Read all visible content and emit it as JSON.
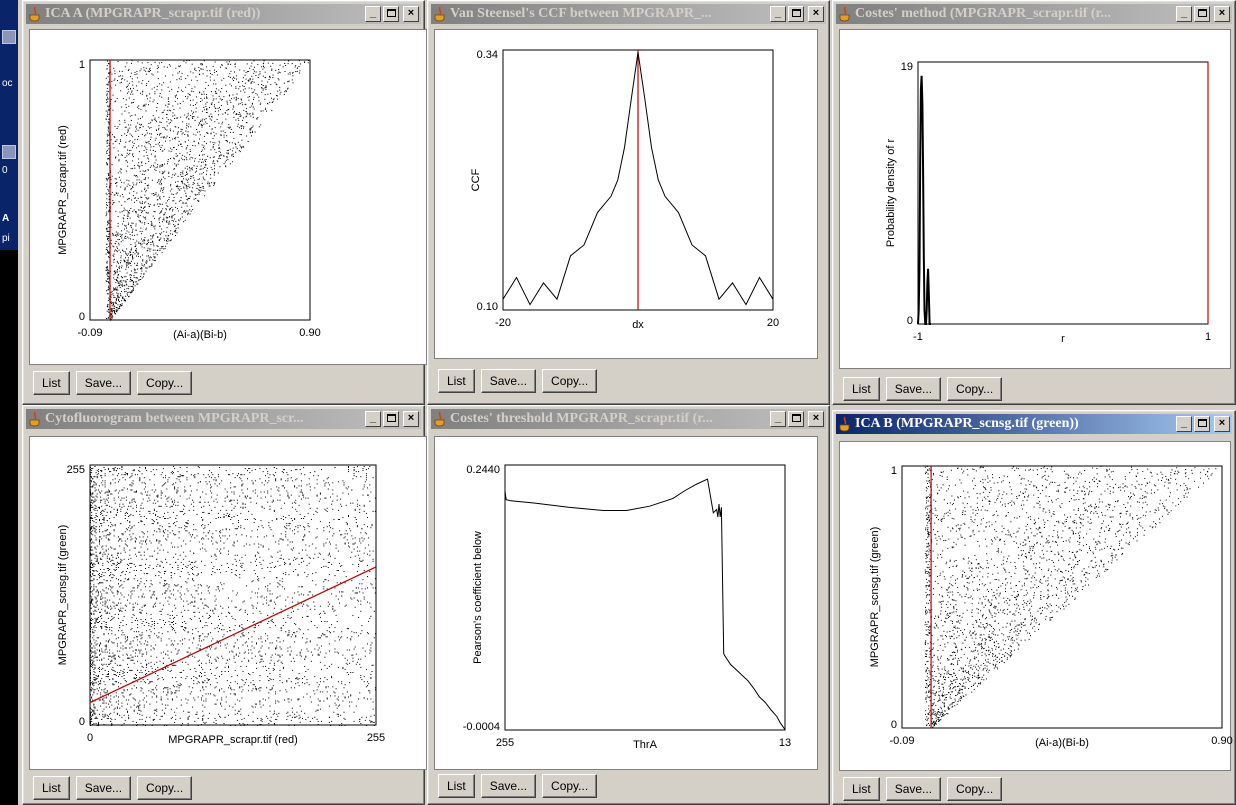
{
  "desktop": {
    "labels": [
      "oc",
      "0",
      "A",
      "pi"
    ]
  },
  "buttons": {
    "list": "List",
    "save": "Save...",
    "copy": "Copy..."
  },
  "windows": [
    {
      "id": "icaA",
      "title": "ICA A (MPGRAPR_scrapr.tif (red))",
      "active": false,
      "chart_data": {
        "type": "scatter",
        "xlabel": "(Ai-a)(Bi-b)",
        "ylabel": "MPGRAPR_scrapr.tif (red)",
        "x_ticks": [
          "-0.09",
          "0.90"
        ],
        "y_ticks": [
          "1",
          "0"
        ],
        "xlim": [
          -0.09,
          0.9
        ],
        "ylim": [
          0,
          1
        ],
        "vline_x": 0.0
      }
    },
    {
      "id": "ccf",
      "title": "Van Steensel's CCF between MPGRAPR_...",
      "active": false,
      "chart_data": {
        "type": "line",
        "xlabel": "dx",
        "ylabel": "CCF",
        "x_ticks": [
          "-20",
          "20"
        ],
        "y_ticks": [
          "0.34",
          "0.10"
        ],
        "xlim": [
          -20,
          20
        ],
        "ylim": [
          0.1,
          0.34
        ],
        "vline_x": 0,
        "x": [
          -20,
          -18,
          -16,
          -14,
          -12,
          -10,
          -8,
          -6,
          -4,
          -3,
          -2,
          -1,
          0,
          1,
          2,
          3,
          4,
          6,
          8,
          10,
          12,
          14,
          16,
          18,
          20
        ],
        "y": [
          0.11,
          0.13,
          0.105,
          0.125,
          0.11,
          0.15,
          0.16,
          0.19,
          0.205,
          0.22,
          0.25,
          0.295,
          0.338,
          0.295,
          0.25,
          0.22,
          0.205,
          0.19,
          0.16,
          0.15,
          0.11,
          0.125,
          0.105,
          0.13,
          0.11
        ]
      }
    },
    {
      "id": "costes",
      "title": "Costes' method (MPGRAPR_scrapr.tif (r...",
      "active": false,
      "chart_data": {
        "type": "line",
        "xlabel": "r",
        "ylabel": "Probability density of r",
        "x_ticks": [
          "-1",
          "1"
        ],
        "y_ticks": [
          "19",
          "0"
        ],
        "xlim": [
          -1,
          1
        ],
        "ylim": [
          0,
          19
        ],
        "vline_x": 1,
        "x": [
          -1.0,
          -0.995,
          -0.99,
          -0.985,
          -0.98,
          -0.975,
          -0.97,
          -0.965,
          -0.96,
          -0.955,
          -0.95,
          -0.945,
          -0.94,
          -0.935,
          -0.93,
          -0.925,
          -0.92,
          -0.91
        ],
        "y": [
          0,
          1,
          4,
          12,
          17,
          18,
          16,
          11,
          5,
          1,
          0,
          0,
          1,
          3,
          4,
          2,
          0,
          0
        ]
      }
    },
    {
      "id": "cyto",
      "title": "Cytofluorogram between MPGRAPR_scr...",
      "active": false,
      "chart_data": {
        "type": "scatter",
        "xlabel": "MPGRAPR_scrapr.tif (red)",
        "ylabel": "MPGRAPR_scnsg.tif (green)",
        "x_ticks": [
          "0",
          "255"
        ],
        "y_ticks": [
          "255",
          "0"
        ],
        "xlim": [
          0,
          255
        ],
        "ylim": [
          0,
          255
        ],
        "fit_line": {
          "x": [
            0,
            255
          ],
          "y": [
            22,
            155
          ]
        }
      }
    },
    {
      "id": "costesT",
      "title": "Costes' threshold MPGRAPR_scrapr.tif (r...",
      "active": false,
      "chart_data": {
        "type": "line",
        "xlabel": "ThrA",
        "ylabel": "Pearson's coefficient below",
        "x_ticks": [
          "255",
          "13"
        ],
        "y_ticks": [
          "0.2440",
          "-0.0004"
        ],
        "xlim": [
          255,
          13
        ],
        "ylim": [
          -0.0004,
          0.244
        ],
        "x": [
          255,
          254,
          250,
          230,
          200,
          170,
          150,
          130,
          110,
          100,
          90,
          80,
          75,
          72,
          71,
          70,
          69,
          68,
          66,
          65,
          60,
          55,
          50,
          45,
          40,
          35,
          30,
          25,
          20,
          17,
          15,
          13
        ],
        "y": [
          0.22,
          0.212,
          0.211,
          0.209,
          0.205,
          0.202,
          0.202,
          0.206,
          0.213,
          0.22,
          0.226,
          0.231,
          0.2,
          0.203,
          0.196,
          0.208,
          0.196,
          0.205,
          0.07,
          0.068,
          0.06,
          0.055,
          0.05,
          0.045,
          0.038,
          0.03,
          0.025,
          0.018,
          0.012,
          0.006,
          0.003,
          0.0
        ]
      }
    },
    {
      "id": "icaB",
      "title": "ICA B (MPGRAPR_scnsg.tif (green))",
      "active": true,
      "chart_data": {
        "type": "scatter",
        "xlabel": "(Ai-a)(Bi-b)",
        "ylabel": "MPGRAPR_scnsg.tif (green)",
        "x_ticks": [
          "-0.09",
          "0.90"
        ],
        "y_ticks": [
          "1",
          "0"
        ],
        "xlim": [
          -0.09,
          0.9
        ],
        "ylim": [
          0,
          1
        ],
        "vline_x": 0.0
      }
    }
  ]
}
